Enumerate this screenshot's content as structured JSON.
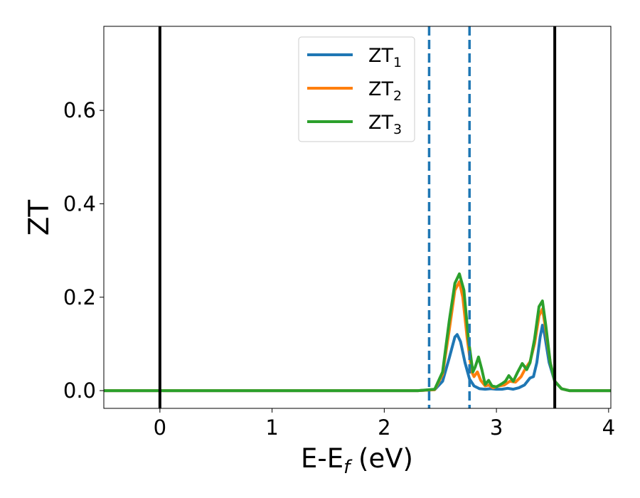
{
  "chart_data": {
    "type": "line",
    "xlabel_main": "E-E",
    "xlabel_sub": "f",
    "xlabel_unit": " (eV)",
    "ylabel": "ZT",
    "xlim": [
      -0.5,
      4.02
    ],
    "ylim": [
      -0.038,
      0.78
    ],
    "xticks": [
      0,
      1,
      2,
      3,
      4
    ],
    "xtick_labels": [
      "0",
      "1",
      "2",
      "3",
      "4"
    ],
    "yticks": [
      0.0,
      0.2,
      0.4,
      0.6
    ],
    "ytick_labels": [
      "0.0",
      "0.2",
      "0.4",
      "0.6"
    ],
    "grid": false,
    "legend_position": "top-center",
    "reference_lines": [
      {
        "x": 0.0,
        "style": "solid",
        "color": "#000000"
      },
      {
        "x": 3.52,
        "style": "solid",
        "color": "#000000"
      },
      {
        "x": 2.4,
        "style": "dashed",
        "color": "#1f77b4"
      },
      {
        "x": 2.76,
        "style": "dashed",
        "color": "#1f77b4"
      }
    ],
    "series": [
      {
        "name": "ZT",
        "subscript": "1",
        "color": "#1f77b4",
        "points": [
          [
            -0.5,
            0
          ],
          [
            2.3,
            0
          ],
          [
            2.45,
            0.002
          ],
          [
            2.52,
            0.02
          ],
          [
            2.58,
            0.07
          ],
          [
            2.63,
            0.115
          ],
          [
            2.65,
            0.12
          ],
          [
            2.68,
            0.105
          ],
          [
            2.72,
            0.06
          ],
          [
            2.76,
            0.025
          ],
          [
            2.8,
            0.01
          ],
          [
            2.85,
            0.004
          ],
          [
            2.9,
            0.003
          ],
          [
            2.95,
            0.004
          ],
          [
            3.0,
            0.003
          ],
          [
            3.05,
            0.003
          ],
          [
            3.1,
            0.005
          ],
          [
            3.15,
            0.003
          ],
          [
            3.2,
            0.006
          ],
          [
            3.25,
            0.012
          ],
          [
            3.3,
            0.027
          ],
          [
            3.33,
            0.03
          ],
          [
            3.36,
            0.06
          ],
          [
            3.39,
            0.115
          ],
          [
            3.41,
            0.14
          ],
          [
            3.43,
            0.12
          ],
          [
            3.47,
            0.06
          ],
          [
            3.52,
            0.02
          ],
          [
            3.58,
            0.004
          ],
          [
            3.65,
            0.0
          ],
          [
            4.02,
            0.0
          ]
        ]
      },
      {
        "name": "ZT",
        "subscript": "2",
        "color": "#ff7f0e",
        "points": [
          [
            -0.5,
            0
          ],
          [
            2.3,
            0
          ],
          [
            2.45,
            0.002
          ],
          [
            2.52,
            0.035
          ],
          [
            2.58,
            0.13
          ],
          [
            2.63,
            0.215
          ],
          [
            2.67,
            0.233
          ],
          [
            2.7,
            0.2
          ],
          [
            2.74,
            0.11
          ],
          [
            2.78,
            0.04
          ],
          [
            2.8,
            0.03
          ],
          [
            2.83,
            0.04
          ],
          [
            2.86,
            0.022
          ],
          [
            2.9,
            0.01
          ],
          [
            2.93,
            0.012
          ],
          [
            2.97,
            0.006
          ],
          [
            3.02,
            0.01
          ],
          [
            3.07,
            0.012
          ],
          [
            3.12,
            0.02
          ],
          [
            3.17,
            0.018
          ],
          [
            3.22,
            0.03
          ],
          [
            3.26,
            0.048
          ],
          [
            3.3,
            0.062
          ],
          [
            3.34,
            0.1
          ],
          [
            3.38,
            0.16
          ],
          [
            3.41,
            0.175
          ],
          [
            3.44,
            0.13
          ],
          [
            3.48,
            0.06
          ],
          [
            3.52,
            0.02
          ],
          [
            3.58,
            0.004
          ],
          [
            3.65,
            0.0
          ],
          [
            4.02,
            0.0
          ]
        ]
      },
      {
        "name": "ZT",
        "subscript": "3",
        "color": "#2ca02c",
        "points": [
          [
            -0.5,
            0
          ],
          [
            2.3,
            0
          ],
          [
            2.45,
            0.003
          ],
          [
            2.52,
            0.04
          ],
          [
            2.58,
            0.15
          ],
          [
            2.63,
            0.23
          ],
          [
            2.67,
            0.25
          ],
          [
            2.71,
            0.215
          ],
          [
            2.75,
            0.11
          ],
          [
            2.79,
            0.04
          ],
          [
            2.81,
            0.05
          ],
          [
            2.84,
            0.072
          ],
          [
            2.87,
            0.045
          ],
          [
            2.9,
            0.013
          ],
          [
            2.93,
            0.022
          ],
          [
            2.96,
            0.01
          ],
          [
            3.0,
            0.008
          ],
          [
            3.05,
            0.015
          ],
          [
            3.08,
            0.02
          ],
          [
            3.11,
            0.032
          ],
          [
            3.15,
            0.02
          ],
          [
            3.19,
            0.04
          ],
          [
            3.23,
            0.058
          ],
          [
            3.27,
            0.045
          ],
          [
            3.3,
            0.06
          ],
          [
            3.34,
            0.11
          ],
          [
            3.38,
            0.18
          ],
          [
            3.41,
            0.192
          ],
          [
            3.44,
            0.14
          ],
          [
            3.48,
            0.06
          ],
          [
            3.52,
            0.02
          ],
          [
            3.58,
            0.004
          ],
          [
            3.65,
            0.0
          ],
          [
            4.02,
            0.0
          ]
        ]
      }
    ]
  }
}
